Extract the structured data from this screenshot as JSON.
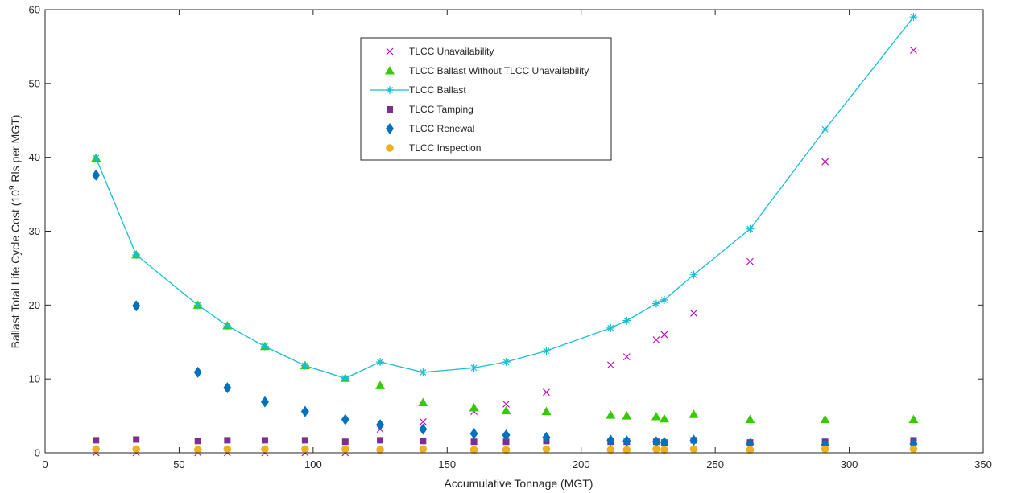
{
  "chart_data": {
    "type": "scatter",
    "xlabel": "Accumulative Tonnage (MGT)",
    "ylabel_parts": [
      "Ballast Total Life Cycle Cost (10",
      "9",
      " Rls per MGT)"
    ],
    "xlim": [
      0,
      350
    ],
    "ylim": [
      0,
      60
    ],
    "xticks": [
      0,
      50,
      100,
      150,
      200,
      250,
      300,
      350
    ],
    "yticks": [
      0,
      10,
      20,
      30,
      40,
      50,
      60
    ],
    "grid": false,
    "legend_position": "top-center",
    "x": [
      19,
      34,
      57,
      68,
      82,
      97,
      112,
      125,
      141,
      160,
      172,
      187,
      211,
      217,
      228,
      231,
      242,
      263,
      291,
      324
    ],
    "series": [
      {
        "name": "TLCC Unavailability",
        "marker": "x",
        "line": false,
        "color": "#BF00BF",
        "values": [
          0,
          0,
          0,
          0,
          0,
          0,
          0,
          3.2,
          4.2,
          5.6,
          6.6,
          8.2,
          11.9,
          13.0,
          15.3,
          16.0,
          18.9,
          25.9,
          39.4,
          54.5
        ]
      },
      {
        "name": "TLCC Ballast Without TLCC Unavailability",
        "marker": "triangle",
        "line": false,
        "color": "#33CC00",
        "values": [
          39.9,
          26.8,
          20.0,
          17.2,
          14.4,
          11.8,
          10.1,
          9.1,
          6.8,
          6.1,
          5.7,
          5.6,
          5.1,
          5.0,
          4.9,
          4.6,
          5.2,
          4.5,
          4.5,
          4.5
        ]
      },
      {
        "name": "TLCC Ballast",
        "marker": "asterisk",
        "line": true,
        "color": "#17BECF",
        "values": [
          39.9,
          26.8,
          20.0,
          17.2,
          14.4,
          11.8,
          10.1,
          12.3,
          10.9,
          11.5,
          12.3,
          13.8,
          16.9,
          17.9,
          20.2,
          20.7,
          24.1,
          30.3,
          43.8,
          59.0
        ]
      },
      {
        "name": "TLCC Tamping",
        "marker": "square",
        "line": false,
        "color": "#7E2F8E",
        "values": [
          1.7,
          1.8,
          1.6,
          1.7,
          1.7,
          1.7,
          1.5,
          1.7,
          1.6,
          1.5,
          1.5,
          1.6,
          1.5,
          1.5,
          1.5,
          1.4,
          1.7,
          1.4,
          1.5,
          1.7
        ]
      },
      {
        "name": "TLCC Renewal",
        "marker": "diamond",
        "line": false,
        "color": "#0072BD",
        "values": [
          37.6,
          19.9,
          10.9,
          8.8,
          6.9,
          5.6,
          4.5,
          3.8,
          3.2,
          2.6,
          2.4,
          2.1,
          1.7,
          1.6,
          1.5,
          1.4,
          1.7,
          1.2,
          1.1,
          1.2
        ]
      },
      {
        "name": "TLCC Inspection",
        "marker": "circle",
        "line": false,
        "color": "#EDB120",
        "values": [
          0.5,
          0.5,
          0.4,
          0.5,
          0.5,
          0.5,
          0.5,
          0.4,
          0.5,
          0.4,
          0.4,
          0.5,
          0.4,
          0.4,
          0.5,
          0.4,
          0.5,
          0.4,
          0.5,
          0.5
        ]
      }
    ]
  }
}
